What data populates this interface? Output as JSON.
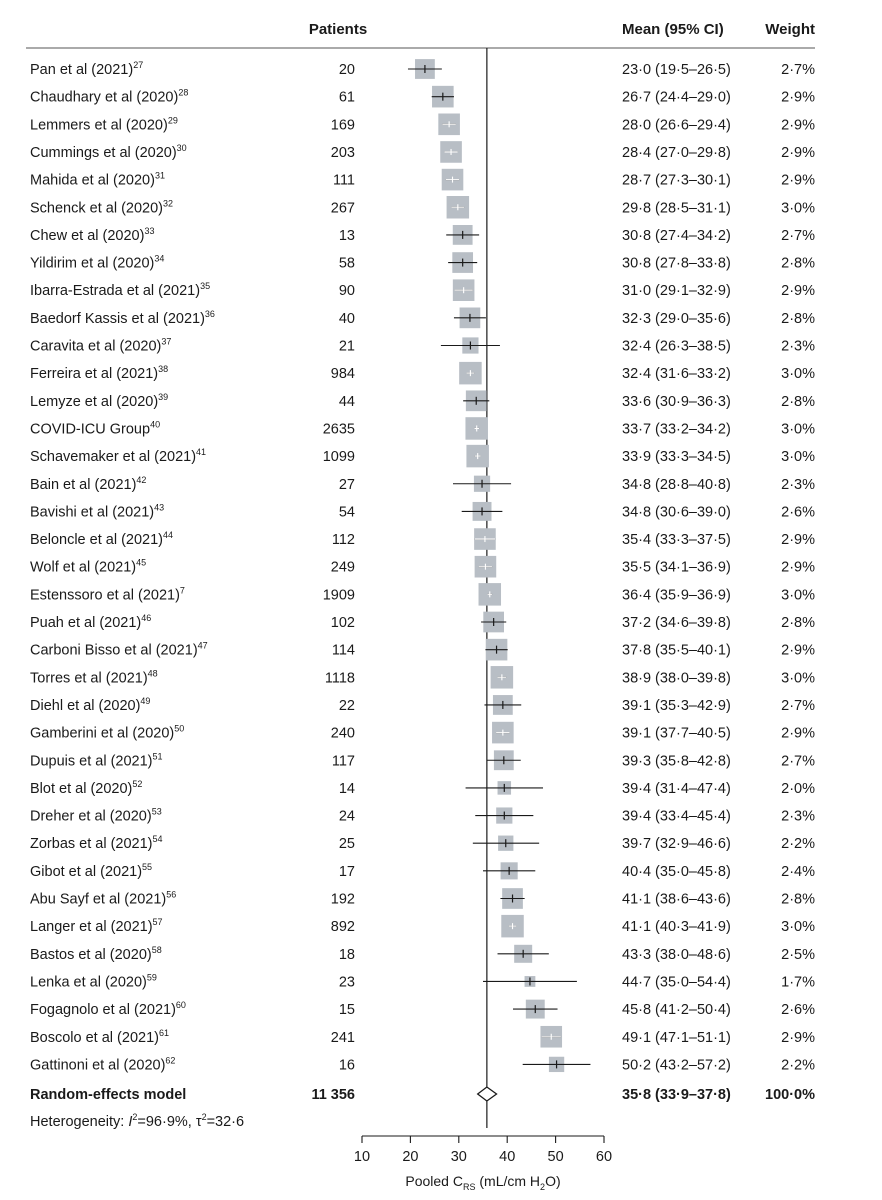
{
  "header": {
    "patients": "Patients",
    "mean": "Mean (95% CI)",
    "weight": "Weight"
  },
  "chart_data": {
    "type": "forest",
    "xlim": [
      10,
      60
    ],
    "xticks": [
      "10",
      "20",
      "30",
      "40",
      "50",
      "60"
    ],
    "xlabel": {
      "prefix": "Pooled C",
      "sub": "RS",
      "mid": " (mL/cm H",
      "sub2": "2",
      "suffix": "O)"
    },
    "studies": [
      {
        "name": "Pan et al (2021)",
        "ref": "27",
        "patients": "20",
        "mean": 23.0,
        "lo": 19.5,
        "hi": 26.5,
        "ci": "23·0 (19·5–26·5)",
        "weight": 2.7,
        "weight_label": "2·7%"
      },
      {
        "name": "Chaudhary et al (2020)",
        "ref": "28",
        "patients": "61",
        "mean": 26.7,
        "lo": 24.4,
        "hi": 29.0,
        "ci": "26·7 (24·4–29·0)",
        "weight": 2.9,
        "weight_label": "2·9%"
      },
      {
        "name": "Lemmers et al (2020)",
        "ref": "29",
        "patients": "169",
        "mean": 28.0,
        "lo": 26.6,
        "hi": 29.4,
        "ci": "28·0 (26·6–29·4)",
        "weight": 2.9,
        "weight_label": "2·9%"
      },
      {
        "name": "Cummings et al (2020)",
        "ref": "30",
        "patients": "203",
        "mean": 28.4,
        "lo": 27.0,
        "hi": 29.8,
        "ci": "28·4 (27·0–29·8)",
        "weight": 2.9,
        "weight_label": "2·9%"
      },
      {
        "name": "Mahida et al (2020)",
        "ref": "31",
        "patients": "111",
        "mean": 28.7,
        "lo": 27.3,
        "hi": 30.1,
        "ci": "28·7 (27·3–30·1)",
        "weight": 2.9,
        "weight_label": "2·9%"
      },
      {
        "name": "Schenck et al (2020)",
        "ref": "32",
        "patients": "267",
        "mean": 29.8,
        "lo": 28.5,
        "hi": 31.1,
        "ci": "29·8 (28·5–31·1)",
        "weight": 3.0,
        "weight_label": "3·0%"
      },
      {
        "name": "Chew et al (2020)",
        "ref": "33",
        "patients": "13",
        "mean": 30.8,
        "lo": 27.4,
        "hi": 34.2,
        "ci": "30·8 (27·4–34·2)",
        "weight": 2.7,
        "weight_label": "2·7%"
      },
      {
        "name": "Yildirim et al (2020)",
        "ref": "34",
        "patients": "58",
        "mean": 30.8,
        "lo": 27.8,
        "hi": 33.8,
        "ci": "30·8 (27·8–33·8)",
        "weight": 2.8,
        "weight_label": "2·8%"
      },
      {
        "name": "Ibarra-Estrada et al (2021)",
        "ref": "35",
        "patients": "90",
        "mean": 31.0,
        "lo": 29.1,
        "hi": 32.9,
        "ci": "31·0 (29·1–32·9)",
        "weight": 2.9,
        "weight_label": "2·9%"
      },
      {
        "name": "Baedorf Kassis et al (2021)",
        "ref": "36",
        "patients": "40",
        "mean": 32.3,
        "lo": 29.0,
        "hi": 35.6,
        "ci": "32·3 (29·0–35·6)",
        "weight": 2.8,
        "weight_label": "2·8%"
      },
      {
        "name": "Caravita et al (2020)",
        "ref": "37",
        "patients": "21",
        "mean": 32.4,
        "lo": 26.3,
        "hi": 38.5,
        "ci": "32·4 (26·3–38·5)",
        "weight": 2.3,
        "weight_label": "2·3%"
      },
      {
        "name": "Ferreira et al (2021)",
        "ref": "38",
        "patients": "984",
        "mean": 32.4,
        "lo": 31.6,
        "hi": 33.2,
        "ci": "32·4 (31·6–33·2)",
        "weight": 3.0,
        "weight_label": "3·0%"
      },
      {
        "name": "Lemyze et al (2020)",
        "ref": "39",
        "patients": "44",
        "mean": 33.6,
        "lo": 30.9,
        "hi": 36.3,
        "ci": "33·6 (30·9–36·3)",
        "weight": 2.8,
        "weight_label": "2·8%"
      },
      {
        "name": "COVID-ICU Group",
        "ref": "40",
        "patients": "2635",
        "mean": 33.7,
        "lo": 33.2,
        "hi": 34.2,
        "ci": "33·7 (33·2–34·2)",
        "weight": 3.0,
        "weight_label": "3·0%"
      },
      {
        "name": "Schavemaker et al (2021)",
        "ref": "41",
        "patients": "1099",
        "mean": 33.9,
        "lo": 33.3,
        "hi": 34.5,
        "ci": "33·9 (33·3–34·5)",
        "weight": 3.0,
        "weight_label": "3·0%"
      },
      {
        "name": "Bain et al (2021)",
        "ref": "42",
        "patients": "27",
        "mean": 34.8,
        "lo": 28.8,
        "hi": 40.8,
        "ci": "34·8 (28·8–40·8)",
        "weight": 2.3,
        "weight_label": "2·3%"
      },
      {
        "name": "Bavishi et al (2021)",
        "ref": "43",
        "patients": "54",
        "mean": 34.8,
        "lo": 30.6,
        "hi": 39.0,
        "ci": "34·8 (30·6–39·0)",
        "weight": 2.6,
        "weight_label": "2·6%"
      },
      {
        "name": "Beloncle et al (2021)",
        "ref": "44",
        "patients": "112",
        "mean": 35.4,
        "lo": 33.3,
        "hi": 37.5,
        "ci": "35·4 (33·3–37·5)",
        "weight": 2.9,
        "weight_label": "2·9%"
      },
      {
        "name": "Wolf et al (2021)",
        "ref": "45",
        "patients": "249",
        "mean": 35.5,
        "lo": 34.1,
        "hi": 36.9,
        "ci": "35·5 (34·1–36·9)",
        "weight": 2.9,
        "weight_label": "2·9%"
      },
      {
        "name": "Estenssoro et al (2021)",
        "ref": "7",
        "patients": "1909",
        "mean": 36.4,
        "lo": 35.9,
        "hi": 36.9,
        "ci": "36·4 (35·9–36·9)",
        "weight": 3.0,
        "weight_label": "3·0%"
      },
      {
        "name": "Puah et al (2021)",
        "ref": "46",
        "patients": "102",
        "mean": 37.2,
        "lo": 34.6,
        "hi": 39.8,
        "ci": "37·2 (34·6–39·8)",
        "weight": 2.8,
        "weight_label": "2·8%"
      },
      {
        "name": "Carboni Bisso et al (2021)",
        "ref": "47",
        "patients": "114",
        "mean": 37.8,
        "lo": 35.5,
        "hi": 40.1,
        "ci": "37·8 (35·5–40·1)",
        "weight": 2.9,
        "weight_label": "2·9%"
      },
      {
        "name": "Torres et al (2021)",
        "ref": "48",
        "patients": "1118",
        "mean": 38.9,
        "lo": 38.0,
        "hi": 39.8,
        "ci": "38·9 (38·0–39·8)",
        "weight": 3.0,
        "weight_label": "3·0%"
      },
      {
        "name": "Diehl et al (2020)",
        "ref": "49",
        "patients": "22",
        "mean": 39.1,
        "lo": 35.3,
        "hi": 42.9,
        "ci": "39·1 (35·3–42·9)",
        "weight": 2.7,
        "weight_label": "2·7%"
      },
      {
        "name": "Gamberini et al (2020)",
        "ref": "50",
        "patients": "240",
        "mean": 39.1,
        "lo": 37.7,
        "hi": 40.5,
        "ci": "39·1 (37·7–40·5)",
        "weight": 2.9,
        "weight_label": "2·9%"
      },
      {
        "name": "Dupuis et al (2021)",
        "ref": "51",
        "patients": "117",
        "mean": 39.3,
        "lo": 35.8,
        "hi": 42.8,
        "ci": "39·3 (35·8–42·8)",
        "weight": 2.7,
        "weight_label": "2·7%"
      },
      {
        "name": "Blot et al (2020)",
        "ref": "52",
        "patients": "14",
        "mean": 39.4,
        "lo": 31.4,
        "hi": 47.4,
        "ci": "39·4 (31·4–47·4)",
        "weight": 2.0,
        "weight_label": "2·0%"
      },
      {
        "name": "Dreher et al (2020)",
        "ref": "53",
        "patients": "24",
        "mean": 39.4,
        "lo": 33.4,
        "hi": 45.4,
        "ci": "39·4 (33·4–45·4)",
        "weight": 2.3,
        "weight_label": "2·3%"
      },
      {
        "name": "Zorbas et al (2021)",
        "ref": "54",
        "patients": "25",
        "mean": 39.7,
        "lo": 32.9,
        "hi": 46.6,
        "ci": "39·7 (32·9–46·6)",
        "weight": 2.2,
        "weight_label": "2·2%"
      },
      {
        "name": "Gibot et al (2021)",
        "ref": "55",
        "patients": "17",
        "mean": 40.4,
        "lo": 35.0,
        "hi": 45.8,
        "ci": "40·4 (35·0–45·8)",
        "weight": 2.4,
        "weight_label": "2·4%"
      },
      {
        "name": "Abu Sayf et al (2021)",
        "ref": "56",
        "patients": "192",
        "mean": 41.1,
        "lo": 38.6,
        "hi": 43.6,
        "ci": "41·1 (38·6–43·6)",
        "weight": 2.8,
        "weight_label": "2·8%"
      },
      {
        "name": "Langer et al (2021)",
        "ref": "57",
        "patients": "892",
        "mean": 41.1,
        "lo": 40.3,
        "hi": 41.9,
        "ci": "41·1 (40·3–41·9)",
        "weight": 3.0,
        "weight_label": "3·0%"
      },
      {
        "name": "Bastos et al (2020)",
        "ref": "58",
        "patients": "18",
        "mean": 43.3,
        "lo": 38.0,
        "hi": 48.6,
        "ci": "43·3 (38·0–48·6)",
        "weight": 2.5,
        "weight_label": "2·5%"
      },
      {
        "name": "Lenka et al (2020)",
        "ref": "59",
        "patients": "23",
        "mean": 44.7,
        "lo": 35.0,
        "hi": 54.4,
        "ci": "44·7 (35·0–54·4)",
        "weight": 1.7,
        "weight_label": "1·7%"
      },
      {
        "name": "Fogagnolo et al (2021)",
        "ref": "60",
        "patients": "15",
        "mean": 45.8,
        "lo": 41.2,
        "hi": 50.4,
        "ci": "45·8 (41·2–50·4)",
        "weight": 2.6,
        "weight_label": "2·6%"
      },
      {
        "name": "Boscolo et al (2021)",
        "ref": "61",
        "patients": "241",
        "mean": 49.1,
        "lo": 47.1,
        "hi": 51.1,
        "ci": "49·1 (47·1–51·1)",
        "weight": 2.9,
        "weight_label": "2·9%"
      },
      {
        "name": "Gattinoni et al (2020)",
        "ref": "62",
        "patients": "16",
        "mean": 50.2,
        "lo": 43.2,
        "hi": 57.2,
        "ci": "50·2 (43·2–57·2)",
        "weight": 2.2,
        "weight_label": "2·2%"
      }
    ],
    "pooled": {
      "name": "Random-effects model",
      "patients": "11 356",
      "mean": 35.8,
      "lo": 33.9,
      "hi": 37.8,
      "ci": "35·8 (33·9–37·8)",
      "weight_label": "100·0%"
    },
    "heterogeneity": {
      "prefix": "Heterogeneity: ",
      "i2_symbol": "I",
      "i2_sup": "2",
      "i2_value": "=96·9%, τ",
      "tau_sup": "2",
      "tau_value": "=32·6"
    },
    "colors": {
      "box": "#b8bec5",
      "line": "#1a1a1a",
      "rule": "#555555"
    }
  }
}
